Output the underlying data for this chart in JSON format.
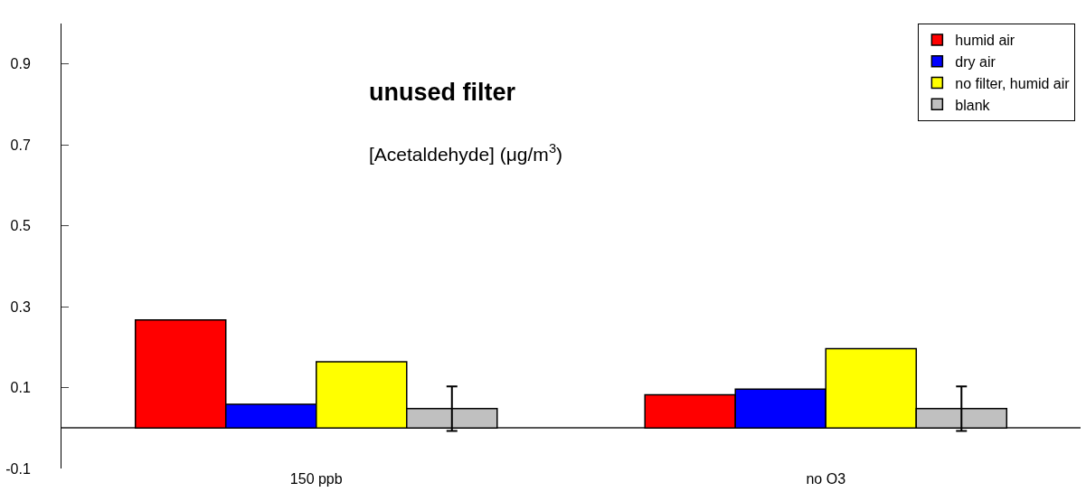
{
  "chart_data": {
    "type": "bar",
    "title": "unused filter",
    "subtitle": "[Acetaldehyde] (μg/m$^{3}$)",
    "categories": [
      "150 ppb",
      "no O3"
    ],
    "series": [
      {
        "name": "humid air",
        "color": "#ff0000",
        "values": [
          0.267,
          0.082
        ]
      },
      {
        "name": "dry air",
        "color": "#0000ff",
        "values": [
          0.059,
          0.096
        ]
      },
      {
        "name": "no filter, humid air",
        "color": "#ffff00",
        "values": [
          0.164,
          0.196
        ]
      },
      {
        "name": "blank",
        "color": "#c0c0c0",
        "values": [
          0.048,
          0.048
        ],
        "errors": [
          0.055,
          0.055
        ]
      }
    ],
    "ylim": [
      -0.1,
      1.0
    ],
    "yticks": [
      -0.1,
      0.1,
      0.3,
      0.5,
      0.7,
      0.9
    ],
    "legend": "top right"
  }
}
